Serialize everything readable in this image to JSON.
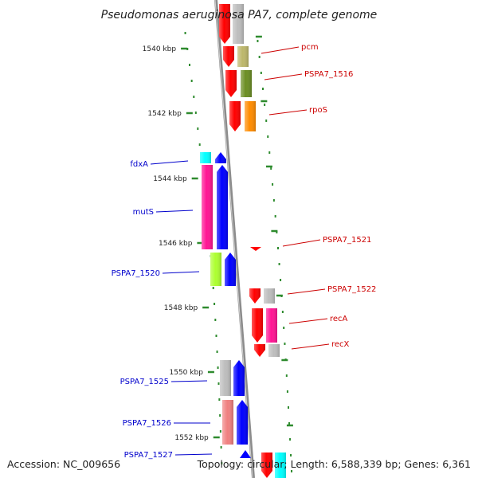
{
  "title": "Pseudomonas aeruginosa PA7, complete genome",
  "footer": {
    "accession": "Accession: NC_009656",
    "summary": "Topology: circular; Length: 6,588,339 bp; Genes: 6,361"
  },
  "colors": {
    "backbone": "#8c8c8c",
    "tick": "#2e8b2e",
    "forward_label": "#0000cc",
    "reverse_label": "#cc0000"
  },
  "ticks": [
    {
      "kbp": 1540,
      "label": "1540 kbp"
    },
    {
      "kbp": 1542,
      "label": "1542 kbp"
    },
    {
      "kbp": 1544,
      "label": "1544 kbp"
    },
    {
      "kbp": 1546,
      "label": "1546 kbp"
    },
    {
      "kbp": 1548,
      "label": "1548 kbp"
    },
    {
      "kbp": 1550,
      "label": "1550 kbp"
    },
    {
      "kbp": 1552,
      "label": "1552 kbp"
    }
  ],
  "genes": [
    {
      "label": "",
      "strand": "-",
      "color": "#ff0000",
      "cog_color": "#bdbdbd"
    },
    {
      "label": "pcm",
      "strand": "-",
      "color": "#ff0000",
      "cog_color": "#bdb76b"
    },
    {
      "label": "PSPA7_1516",
      "strand": "-",
      "color": "#ff0000",
      "cog_color": "#6b8e23"
    },
    {
      "label": "rpoS",
      "strand": "-",
      "color": "#ff0000",
      "cog_color": "#ff8c00"
    },
    {
      "label": "fdxA",
      "strand": "+",
      "color": "#0000ff",
      "cog_color": "#00ffff"
    },
    {
      "label": "mutS",
      "strand": "+",
      "color": "#0000ff",
      "cog_color": "#ff1493"
    },
    {
      "label": "PSPA7_1520",
      "strand": "+",
      "color": "#0000ff",
      "cog_color": "#adff2f"
    },
    {
      "label": "PSPA7_1521",
      "strand": "-",
      "color": "#ff0000",
      "cog_color": ""
    },
    {
      "label": "PSPA7_1522",
      "strand": "-",
      "color": "#ff0000",
      "cog_color": "#bdbdbd"
    },
    {
      "label": "recA",
      "strand": "-",
      "color": "#ff0000",
      "cog_color": "#ff1493"
    },
    {
      "label": "recX",
      "strand": "-",
      "color": "#ff0000",
      "cog_color": "#bdbdbd"
    },
    {
      "label": "PSPA7_1525",
      "strand": "+",
      "color": "#0000ff",
      "cog_color": "#bdbdbd"
    },
    {
      "label": "PSPA7_1526",
      "strand": "+",
      "color": "#0000ff",
      "cog_color": "#f08080"
    },
    {
      "label": "PSPA7_1527",
      "strand": "+",
      "color": "#0000ff",
      "cog_color": ""
    },
    {
      "label": "",
      "strand": "-",
      "color": "#ff0000",
      "cog_color": "#00ffff"
    }
  ]
}
